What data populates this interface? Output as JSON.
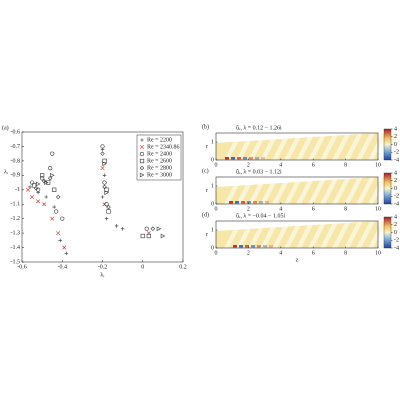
{
  "chart_data": [
    {
      "type": "scatter",
      "panel": "(a)",
      "xlabel": "λᵣ",
      "ylabel": "λᵢ",
      "xlim": [
        -0.6,
        0.2
      ],
      "ylim": [
        -1.5,
        -0.6
      ],
      "xticks": [
        -0.6,
        -0.4,
        -0.2,
        0,
        0.2
      ],
      "yticks": [
        -0.6,
        -0.7,
        -0.8,
        -0.9,
        -1,
        -1.1,
        -1.2,
        -1.3,
        -1.4,
        -1.5
      ],
      "legend": "upper right",
      "series": [
        {
          "name": "Re = 2200",
          "color": "#333333",
          "marker": "plus",
          "x": [
            -0.56,
            -0.52,
            -0.48,
            -0.44,
            -0.41,
            -0.38,
            -0.2,
            -0.19,
            -0.2,
            -0.18,
            -0.13,
            -0.1
          ],
          "y": [
            -0.98,
            -1.02,
            -1.05,
            -1.12,
            -1.35,
            -1.44,
            -0.72,
            -0.9,
            -1.05,
            -1.2,
            -1.25,
            -1.27
          ]
        },
        {
          "name": "Re = 2340.86",
          "color": "#d62728",
          "marker": "x",
          "x": [
            -0.57,
            -0.55,
            -0.52,
            -0.49,
            -0.45,
            -0.42,
            -0.39,
            -0.2,
            -0.19,
            0.03
          ],
          "y": [
            -1.0,
            -1.05,
            -1.08,
            -1.1,
            -1.2,
            -1.3,
            -1.4,
            -0.85,
            -1.1,
            -1.3
          ]
        },
        {
          "name": "Re = 2400",
          "color": "#333333",
          "marker": "circle",
          "x": [
            -0.55,
            -0.52,
            -0.5,
            -0.46,
            -0.45,
            -0.43,
            -0.4,
            -0.2,
            -0.19,
            -0.18,
            0.02
          ],
          "y": [
            -0.95,
            -1.0,
            -0.92,
            -0.85,
            -0.75,
            -1.15,
            -1.2,
            -0.7,
            -0.95,
            -1.1,
            -1.27
          ]
        },
        {
          "name": "Re = 2600",
          "color": "#333333",
          "marker": "square",
          "x": [
            -0.54,
            -0.5,
            -0.47,
            -0.44,
            -0.19,
            -0.18,
            -0.17,
            0.0,
            0.03
          ],
          "y": [
            -0.97,
            -0.9,
            -0.95,
            -1.0,
            -0.8,
            -1.0,
            -1.15,
            -1.32,
            -1.32
          ]
        },
        {
          "name": "Re = 2800",
          "color": "#333333",
          "marker": "diamond",
          "x": [
            -0.53,
            -0.49,
            -0.46,
            -0.42,
            -0.2,
            -0.19,
            -0.17,
            0.05
          ],
          "y": [
            -0.99,
            -0.94,
            -0.92,
            -1.05,
            -0.75,
            -0.98,
            -1.12,
            -1.27
          ]
        },
        {
          "name": "Re = 3000",
          "color": "#333333",
          "marker": "triangle",
          "x": [
            -0.52,
            -0.48,
            -0.45,
            -0.19,
            -0.18,
            0.08,
            0.1
          ],
          "y": [
            -0.96,
            -0.95,
            -0.9,
            -0.82,
            -1.02,
            -1.27,
            -1.32
          ]
        }
      ]
    },
    {
      "type": "heatmap",
      "panel": "(b)",
      "title": "ûᵣ, λ = 0.12 − 1.26i",
      "ylabel": "r",
      "xlim": [
        0,
        10
      ],
      "ylim": [
        0,
        1.5
      ],
      "xticks": [
        0,
        2,
        4,
        6,
        8,
        10
      ],
      "yticks": [
        0,
        1
      ],
      "cticks": [
        -4,
        -2,
        0,
        2,
        4
      ]
    },
    {
      "type": "heatmap",
      "panel": "(c)",
      "title": "ûᵣ, λ = 0.03 − 1.12i",
      "ylabel": "r",
      "xlim": [
        0,
        10
      ],
      "ylim": [
        0,
        1.5
      ],
      "xticks": [
        0,
        2,
        4,
        6,
        8,
        10
      ],
      "yticks": [
        0,
        1
      ],
      "cticks": [
        -4,
        -2,
        0,
        2,
        4
      ]
    },
    {
      "type": "heatmap",
      "panel": "(d)",
      "title": "ûᵣ, λ = −0.04 − 1.05i",
      "ylabel": "r",
      "xlabel": "z",
      "xlim": [
        0,
        10
      ],
      "ylim": [
        0,
        1.5
      ],
      "xticks": [
        0,
        2,
        4,
        6,
        8,
        10
      ],
      "yticks": [
        0,
        1
      ],
      "cticks": [
        -4,
        -2,
        0,
        2,
        4
      ]
    }
  ]
}
